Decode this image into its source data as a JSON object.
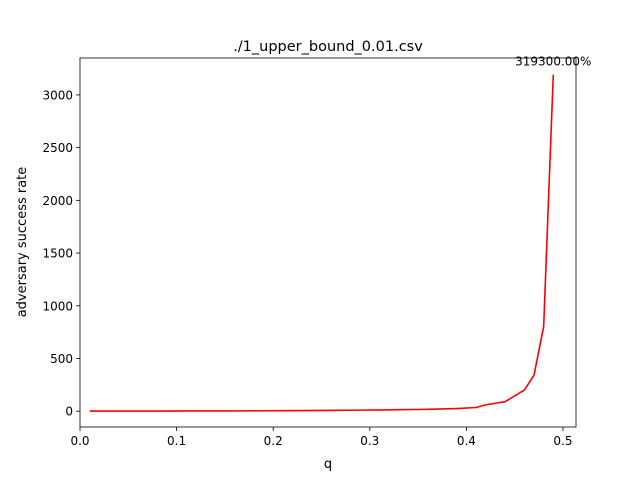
{
  "chart_data": {
    "type": "line",
    "title": "./1_upper_bound_0.01.csv",
    "xlabel": "q",
    "ylabel": "adversary success rate",
    "xlim": [
      -0.0,
      0.5135
    ],
    "ylim": [
      -150,
      3350
    ],
    "xticks": [
      0.0,
      0.1,
      0.2,
      0.3,
      0.4,
      0.5
    ],
    "xtick_labels": [
      "0.0",
      "0.1",
      "0.2",
      "0.3",
      "0.4",
      "0.5"
    ],
    "yticks": [
      0,
      500,
      1000,
      1500,
      2000,
      2500,
      3000
    ],
    "ytick_labels": [
      "0",
      "500",
      "1000",
      "1500",
      "2000",
      "2500",
      "3000"
    ],
    "grid": false,
    "series": [
      {
        "color": "#ff0000",
        "x": [
          0.01,
          0.03,
          0.05,
          0.07,
          0.09,
          0.11,
          0.13,
          0.15,
          0.17,
          0.19,
          0.21,
          0.23,
          0.25,
          0.27,
          0.29,
          0.31,
          0.33,
          0.35,
          0.37,
          0.39,
          0.41,
          0.42,
          0.44,
          0.46,
          0.47,
          0.48,
          0.49
        ],
        "y": [
          1,
          1,
          1,
          1,
          1.5,
          2,
          2,
          2.5,
          3,
          4,
          5,
          6,
          7,
          8,
          10,
          12,
          14,
          16,
          20,
          25,
          35,
          60,
          90,
          200,
          340,
          800,
          3193
        ]
      }
    ],
    "annotations": [
      {
        "text": "319300.00%",
        "x": 0.49,
        "y": 3193
      }
    ]
  }
}
